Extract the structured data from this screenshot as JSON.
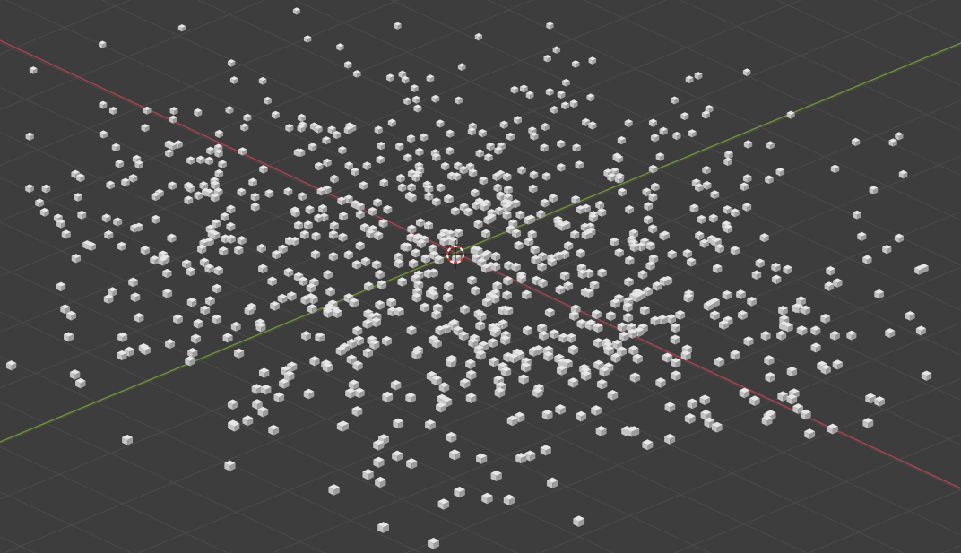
{
  "viewport": {
    "type": "3d-viewport",
    "background_color": "#3d3d3d",
    "grid_color": "#4a4a4a",
    "x_axis_color": "#a8414a",
    "y_axis_color": "#6b9135",
    "cube_colors": {
      "top": "#e6e6e6",
      "left": "#c4c4c4",
      "right": "#9c9c9c"
    },
    "cursor": {
      "icon": "3d-cursor-icon",
      "ring_color_a": "#d23a3a",
      "ring_color_b": "#ffffff"
    }
  }
}
